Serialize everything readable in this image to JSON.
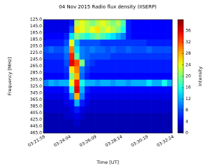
{
  "chart_data": {
    "type": "heatmap",
    "title": "04 Nov 2015 Radio flux density (IISERP)",
    "xlabel": "Time [UT]",
    "ylabel": "Frequency [MHz]",
    "colorbar_label": "Intensity",
    "colormap": "jet",
    "xlim": [
      "03:21:59",
      "03:32:24"
    ],
    "xticks": [
      "03:21:59",
      "03:24:04",
      "03:26:09",
      "03:28:14",
      "03:30:19",
      "03:32:24"
    ],
    "ylim": [
      465,
      125
    ],
    "yticks": [
      {
        "value": 125,
        "label": "125.0"
      },
      {
        "value": 145,
        "label": "145.0"
      },
      {
        "value": 165,
        "label": "165.0"
      },
      {
        "value": 185,
        "label": "185.0"
      },
      {
        "value": 205,
        "label": "205.0"
      },
      {
        "value": 225,
        "label": "225.0"
      },
      {
        "value": 245,
        "label": "245.0"
      },
      {
        "value": 265,
        "label": "265.0"
      },
      {
        "value": 285,
        "label": "285.0"
      },
      {
        "value": 305,
        "label": "305.0"
      },
      {
        "value": 325,
        "label": "325.0"
      },
      {
        "value": 345,
        "label": "345.0"
      },
      {
        "value": 365,
        "label": "365.0"
      },
      {
        "value": 385,
        "label": "385.0"
      },
      {
        "value": 405,
        "label": "405.0"
      },
      {
        "value": 425,
        "label": "425.0"
      },
      {
        "value": 445,
        "label": "445.0"
      },
      {
        "value": 465,
        "label": "465.0"
      }
    ],
    "zlim": [
      0,
      40
    ],
    "zticks": [
      0,
      4,
      8,
      12,
      16,
      20,
      24,
      28,
      32,
      36
    ],
    "xbins": [
      "03:21:59",
      "03:22:24",
      "03:22:49",
      "03:23:14",
      "03:23:39",
      "03:24:04",
      "03:24:29",
      "03:24:54",
      "03:25:19",
      "03:25:44",
      "03:26:09",
      "03:26:34",
      "03:26:59",
      "03:27:24",
      "03:27:49",
      "03:28:14",
      "03:28:39",
      "03:29:04",
      "03:29:29",
      "03:29:54",
      "03:30:19",
      "03:30:44",
      "03:31:09",
      "03:31:34",
      "03:31:59",
      "03:32:24"
    ],
    "y": [
      135,
      155,
      175,
      195,
      215,
      235,
      255,
      275,
      295,
      315,
      335,
      355,
      375,
      395,
      415,
      435,
      455
    ],
    "z": [
      [
        4,
        4,
        4,
        4,
        4,
        6,
        22,
        24,
        22,
        20,
        22,
        24,
        22,
        20,
        22,
        18,
        6,
        5,
        5,
        5,
        5,
        5,
        5,
        5,
        5
      ],
      [
        4,
        4,
        4,
        4,
        4,
        8,
        26,
        24,
        22,
        24,
        26,
        22,
        24,
        22,
        20,
        16,
        6,
        5,
        5,
        5,
        5,
        5,
        5,
        5,
        5
      ],
      [
        5,
        5,
        5,
        5,
        6,
        14,
        20,
        18,
        16,
        18,
        20,
        18,
        16,
        14,
        12,
        10,
        6,
        5,
        5,
        5,
        5,
        5,
        5,
        5,
        5
      ],
      [
        6,
        6,
        6,
        6,
        8,
        24,
        12,
        8,
        8,
        8,
        8,
        7,
        7,
        7,
        7,
        7,
        7,
        7,
        7,
        7,
        6,
        6,
        6,
        6,
        6
      ],
      [
        8,
        9,
        8,
        8,
        10,
        30,
        14,
        10,
        9,
        10,
        9,
        9,
        8,
        9,
        8,
        8,
        9,
        8,
        8,
        8,
        9,
        8,
        8,
        8,
        8
      ],
      [
        7,
        7,
        7,
        7,
        9,
        34,
        18,
        10,
        9,
        8,
        8,
        8,
        8,
        7,
        7,
        7,
        7,
        7,
        7,
        7,
        7,
        7,
        7,
        7,
        7
      ],
      [
        6,
        6,
        6,
        6,
        8,
        36,
        32,
        20,
        8,
        7,
        6,
        6,
        6,
        6,
        6,
        6,
        6,
        6,
        6,
        6,
        6,
        6,
        6,
        6,
        6
      ],
      [
        6,
        6,
        6,
        6,
        7,
        26,
        30,
        10,
        7,
        6,
        6,
        6,
        6,
        6,
        6,
        6,
        6,
        6,
        6,
        6,
        6,
        6,
        6,
        6,
        6
      ],
      [
        5,
        5,
        5,
        5,
        6,
        20,
        28,
        9,
        6,
        5,
        5,
        5,
        5,
        5,
        5,
        5,
        5,
        5,
        5,
        5,
        5,
        5,
        5,
        5,
        5
      ],
      [
        10,
        12,
        11,
        12,
        12,
        24,
        34,
        16,
        12,
        12,
        11,
        12,
        12,
        11,
        12,
        12,
        11,
        12,
        12,
        12,
        14,
        12,
        12,
        16,
        12
      ],
      [
        5,
        5,
        5,
        5,
        6,
        16,
        36,
        12,
        6,
        5,
        5,
        5,
        5,
        5,
        5,
        5,
        5,
        5,
        5,
        5,
        5,
        5,
        5,
        5,
        5
      ],
      [
        4,
        4,
        4,
        4,
        5,
        10,
        28,
        10,
        5,
        4,
        4,
        4,
        4,
        4,
        4,
        4,
        4,
        4,
        4,
        4,
        4,
        4,
        4,
        4,
        4
      ],
      [
        3,
        3,
        3,
        3,
        4,
        5,
        12,
        6,
        4,
        3,
        3,
        3,
        3,
        3,
        3,
        3,
        3,
        3,
        3,
        3,
        3,
        3,
        3,
        3,
        3
      ],
      [
        3,
        3,
        3,
        3,
        3,
        4,
        6,
        4,
        3,
        3,
        3,
        3,
        3,
        3,
        3,
        3,
        3,
        3,
        3,
        3,
        3,
        3,
        3,
        3,
        3
      ],
      [
        2,
        2,
        2,
        2,
        3,
        3,
        4,
        3,
        2,
        2,
        2,
        2,
        2,
        2,
        2,
        2,
        2,
        2,
        2,
        2,
        2,
        2,
        2,
        2,
        2
      ],
      [
        2,
        2,
        2,
        2,
        2,
        2,
        3,
        2,
        2,
        2,
        2,
        2,
        2,
        2,
        2,
        2,
        2,
        2,
        2,
        2,
        2,
        2,
        2,
        2,
        2
      ],
      [
        2,
        2,
        2,
        2,
        2,
        2,
        2,
        2,
        2,
        2,
        2,
        2,
        2,
        2,
        2,
        2,
        2,
        2,
        2,
        2,
        2,
        2,
        2,
        2,
        2
      ]
    ]
  }
}
